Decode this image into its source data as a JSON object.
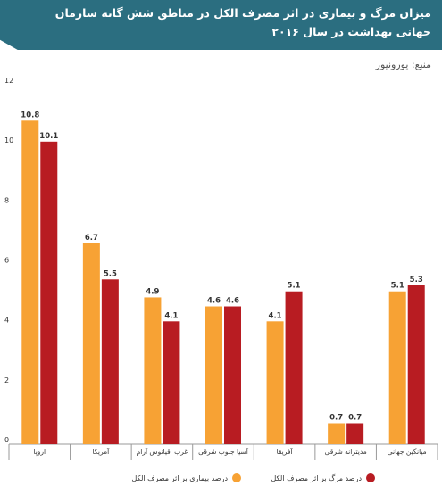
{
  "title": "میزان مرگ و بیماری در اثر مصرف الکل در مناطق شش گانه سازمان جهانی بهداشت در سال ۲۰۱۶",
  "source": "منبع: یورونیوز",
  "colors": {
    "header": "#2b6e80",
    "series_1": "#f7a234",
    "series_2": "#b81c22"
  },
  "chart_data": {
    "type": "bar",
    "categories": [
      "اروپا",
      "آمریکا",
      "غرب اقیانوس آرام",
      "آسیا جنوب شرقی",
      "آفریقا",
      "مدیترانه شرقی",
      "میانگین جهانی"
    ],
    "series": [
      {
        "name": "درصد بیماری بر اثر مصرف الکل",
        "values": [
          10.8,
          6.7,
          4.9,
          4.6,
          4.1,
          0.7,
          5.1
        ],
        "color": "#f7a234"
      },
      {
        "name": "درصد مرگ بر اثر مصرف الکل",
        "values": [
          10.1,
          5.5,
          4.1,
          4.6,
          5.1,
          0.7,
          5.3
        ],
        "color": "#b81c22"
      }
    ],
    "data_labels": [
      [
        "10.8",
        "6.7",
        "4.9",
        "4.6",
        "4.1",
        "0.7",
        "5.1"
      ],
      [
        "10.1",
        "5.5",
        "4.1",
        "4.6",
        "5.1",
        "0.7",
        "5.3"
      ]
    ],
    "yticks": [
      "0",
      "2",
      "4",
      "6",
      "8",
      "10",
      "12"
    ],
    "ylim": [
      0,
      12
    ],
    "grid": false,
    "legend_position": "bottom"
  }
}
